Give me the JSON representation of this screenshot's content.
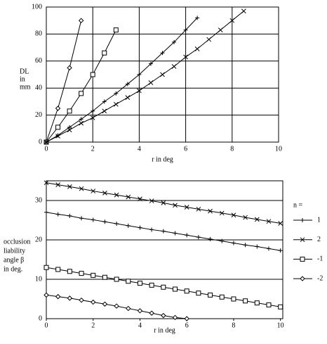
{
  "chart_data": [
    {
      "type": "line",
      "xlabel": "r  in deg",
      "ylabel_lines": [
        "DL",
        "in",
        "mm"
      ],
      "xlim": [
        0,
        10
      ],
      "ylim": [
        0,
        100
      ],
      "xticks": [
        0,
        2,
        4,
        6,
        8,
        10
      ],
      "yticks": [
        0,
        20,
        40,
        60,
        80,
        100
      ],
      "grid": true,
      "series": [
        {
          "color": "#000000",
          "marker": "diamond",
          "x": [
            0,
            0.5,
            1,
            1.5
          ],
          "values": [
            0,
            25,
            55,
            90
          ]
        },
        {
          "color": "#000000",
          "marker": "square",
          "x": [
            0,
            0.5,
            1,
            1.5,
            2,
            2.5,
            3
          ],
          "values": [
            0,
            11,
            23,
            36,
            50,
            66,
            83
          ]
        },
        {
          "color": "#000000",
          "marker": "plus",
          "x": [
            0,
            0.5,
            1,
            1.5,
            2,
            2.5,
            3,
            3.5,
            4,
            4.5,
            5,
            5.5,
            6,
            6.5
          ],
          "values": [
            0,
            5,
            11,
            17,
            23,
            30,
            36,
            43,
            50,
            58,
            66,
            74,
            83,
            92
          ]
        },
        {
          "color": "#000000",
          "marker": "x",
          "x": [
            0,
            0.5,
            1,
            1.5,
            2,
            2.5,
            3,
            3.5,
            4,
            4.5,
            5,
            5.5,
            6,
            6.5,
            7,
            7.5,
            8,
            8.5
          ],
          "values": [
            0,
            4.5,
            9,
            14,
            18,
            23,
            28,
            33,
            38,
            44,
            50,
            56,
            63,
            69,
            76,
            83,
            90,
            97
          ]
        }
      ]
    },
    {
      "type": "line",
      "xlabel": "r  in deg",
      "ylabel_lines": [
        "occlusion",
        "liability",
        "angle β",
        "in deg."
      ],
      "xlim": [
        0,
        10.1
      ],
      "ylim": [
        0,
        35
      ],
      "xticks": [
        0,
        2,
        4,
        6,
        8,
        10
      ],
      "yticks": [
        0,
        10,
        20,
        30
      ],
      "grid": "horizontal",
      "legend": "right",
      "legend_title": "n =",
      "series": [
        {
          "name": "1",
          "color": "#000000",
          "marker": "plus",
          "x": [
            0,
            0.5,
            1,
            1.5,
            2,
            2.5,
            3,
            3.5,
            4,
            4.5,
            5,
            5.5,
            6,
            6.5,
            7,
            7.5,
            8,
            8.5,
            9,
            9.5,
            10
          ],
          "values": [
            27,
            26.5,
            26.1,
            25.5,
            25.1,
            24.6,
            24.1,
            23.6,
            23.1,
            22.6,
            22.2,
            21.7,
            21.2,
            20.7,
            20.2,
            19.7,
            19.2,
            18.7,
            18.3,
            17.8,
            17.3
          ]
        },
        {
          "name": "2",
          "color": "#000000",
          "marker": "x",
          "x": [
            0,
            0.5,
            1,
            1.5,
            2,
            2.5,
            3,
            3.5,
            4,
            4.5,
            5,
            5.5,
            6,
            6.5,
            7,
            7.5,
            8,
            8.5,
            9,
            9.5,
            10
          ],
          "values": [
            34.5,
            34,
            33.5,
            33,
            32.4,
            31.9,
            31.4,
            30.9,
            30.4,
            29.9,
            29.4,
            28.8,
            28.3,
            27.8,
            27.3,
            26.8,
            26.3,
            25.7,
            25.2,
            24.7,
            24.2
          ]
        },
        {
          "name": "-1",
          "color": "#000000",
          "marker": "square",
          "x": [
            0,
            0.5,
            1,
            1.5,
            2,
            2.5,
            3,
            3.5,
            4,
            4.5,
            5,
            5.5,
            6,
            6.5,
            7,
            7.5,
            8,
            8.5,
            9,
            9.5,
            10
          ],
          "values": [
            13,
            12.5,
            12,
            11.5,
            11,
            10.5,
            10,
            9.5,
            9,
            8.5,
            8,
            7.5,
            7,
            6.5,
            6,
            5.5,
            5,
            4.5,
            4,
            3.5,
            3
          ]
        },
        {
          "name": "-2",
          "color": "#000000",
          "marker": "diamond",
          "x": [
            0,
            0.5,
            1,
            1.5,
            2,
            2.5,
            3,
            3.5,
            4,
            4.5,
            5,
            5.5,
            6
          ],
          "values": [
            6,
            5.6,
            5.2,
            4.7,
            4.2,
            3.7,
            3.2,
            2.6,
            2,
            1.4,
            0.8,
            0.3,
            0
          ]
        }
      ]
    }
  ]
}
